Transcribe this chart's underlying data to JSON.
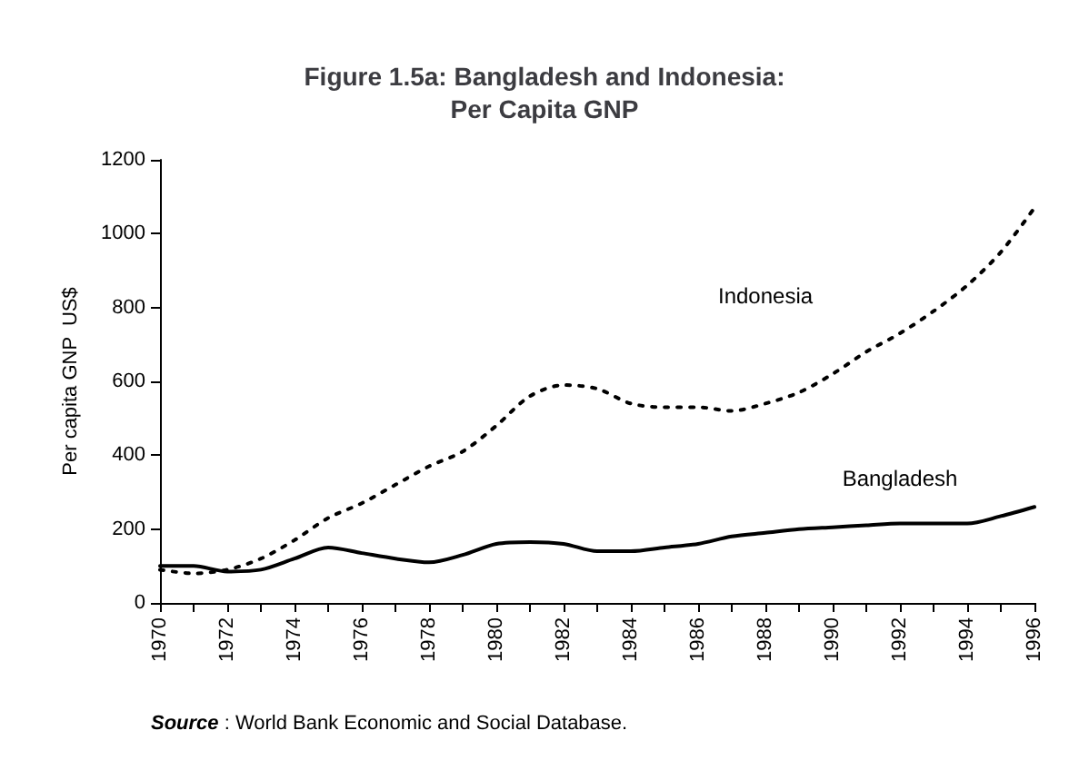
{
  "chart_data": {
    "type": "line",
    "title": "Figure 1.5a: Bangladesh and Indonesia:\nPer Capita GNP",
    "ylabel": "Per capita GNP  US$",
    "annotations": [
      "Source : World Bank Economic and Social Database."
    ],
    "x": [
      1970,
      1971,
      1972,
      1973,
      1974,
      1975,
      1976,
      1977,
      1978,
      1979,
      1980,
      1981,
      1982,
      1983,
      1984,
      1985,
      1986,
      1987,
      1988,
      1989,
      1990,
      1991,
      1992,
      1993,
      1994,
      1995,
      1996
    ],
    "series": [
      {
        "name": "Indonesia",
        "color": "#000000",
        "line_style": "dotted",
        "values": [
          90,
          80,
          90,
          120,
          170,
          230,
          270,
          320,
          370,
          410,
          480,
          560,
          590,
          580,
          540,
          530,
          530,
          520,
          540,
          570,
          620,
          680,
          730,
          790,
          860,
          950,
          1070
        ]
      },
      {
        "name": "Bangladesh",
        "color": "#000000",
        "line_style": "solid",
        "values": [
          100,
          100,
          85,
          90,
          120,
          150,
          135,
          120,
          110,
          130,
          160,
          165,
          160,
          140,
          140,
          150,
          160,
          180,
          190,
          200,
          205,
          210,
          215,
          215,
          215,
          235,
          260
        ]
      }
    ],
    "xlim": [
      1970,
      1996
    ],
    "xticks": [
      1970,
      {
        "value": 1971,
        "label": null
      },
      1972,
      {
        "value": 1973,
        "label": null
      },
      1974,
      {
        "value": 1975,
        "label": null
      },
      1976,
      {
        "value": 1977,
        "label": null
      },
      1978,
      {
        "value": 1979,
        "label": null
      },
      1980,
      {
        "value": 1981,
        "label": null
      },
      1982,
      {
        "value": 1983,
        "label": null
      },
      1984,
      {
        "value": 1985,
        "label": null
      },
      1986,
      {
        "value": 1987,
        "label": null
      },
      1988,
      {
        "value": 1989,
        "label": null
      },
      1990,
      {
        "value": 1991,
        "label": null
      },
      1992,
      {
        "value": 1993,
        "label": null
      },
      1994,
      {
        "value": 1995,
        "label": null
      },
      1996
    ],
    "ylim": [
      0,
      1200
    ],
    "yticks": [
      0,
      200,
      400,
      600,
      800,
      1000,
      1200
    ],
    "grid": false,
    "legend": false,
    "marker": "none"
  }
}
